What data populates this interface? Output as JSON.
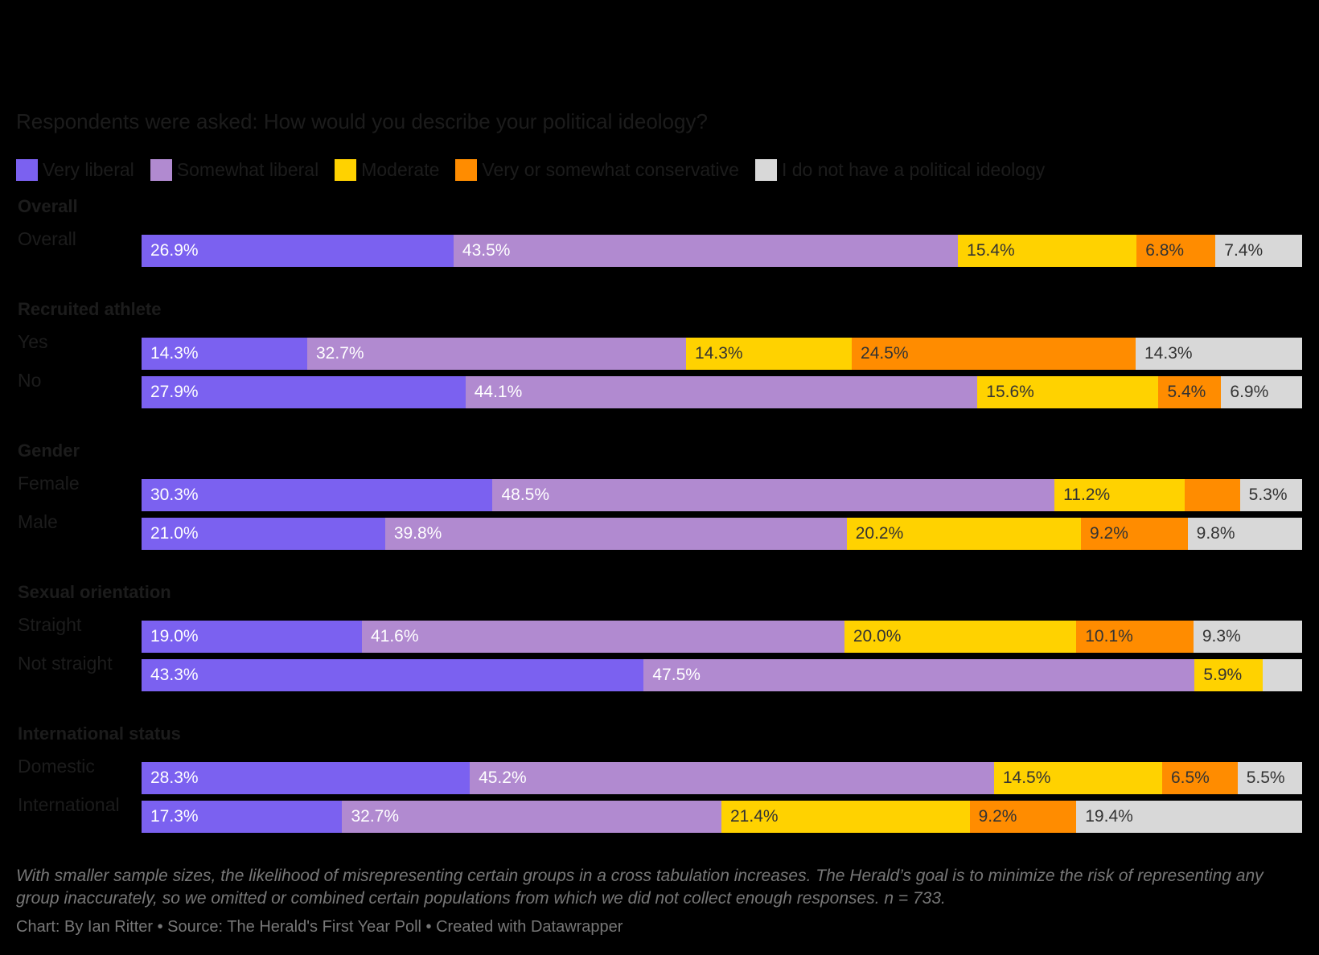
{
  "subtitle": "Respondents were asked: How would you describe your political ideology?",
  "notes": "With smaller sample sizes, the likelihood of misrepresenting certain groups in a cross tabulation increases. The Herald’s goal is to minimize the risk of representing any group inaccurately, so we omitted or combined certain populations from which we did not collect enough responses. n = 733.",
  "byline": "Chart: By Ian Ritter • Source: The Herald's First Year Poll • Created with Datawrapper",
  "colors": {
    "very_liberal": "#7b61f0",
    "somewhat_liberal": "#b18ad0",
    "moderate": "#ffd200",
    "conservative": "#ff8c00",
    "none": "#d8d8d8",
    "label_light": "#ffffff",
    "label_dark": "#333333"
  },
  "chart_data": {
    "type": "bar",
    "stacked": true,
    "orientation": "horizontal",
    "legend_position": "top-left",
    "series": [
      {
        "name": "Very liberal",
        "color": "#7b61f0"
      },
      {
        "name": "Somewhat liberal",
        "color": "#b18ad0"
      },
      {
        "name": "Moderate",
        "color": "#ffd200"
      },
      {
        "name": "Very or somewhat conservative",
        "color": "#ff8c00"
      },
      {
        "name": "I do not have a political ideology",
        "color": "#d8d8d8"
      }
    ],
    "groups": [
      {
        "title": "Overall",
        "rows": [
          {
            "label": "Overall",
            "values": [
              26.9,
              43.5,
              15.4,
              6.8,
              7.4
            ],
            "labels": [
              "26.9%",
              "43.5%",
              "15.4%",
              "6.8%",
              "7.4%"
            ]
          }
        ]
      },
      {
        "title": "Recruited athlete",
        "rows": [
          {
            "label": "Yes",
            "values": [
              14.3,
              32.7,
              14.3,
              24.5,
              14.3
            ],
            "labels": [
              "14.3%",
              "32.7%",
              "14.3%",
              "24.5%",
              "14.3%"
            ]
          },
          {
            "label": "No",
            "values": [
              27.9,
              44.1,
              15.6,
              5.4,
              6.9
            ],
            "labels": [
              "27.9%",
              "44.1%",
              "15.6%",
              "5.4%",
              "6.9%"
            ]
          }
        ]
      },
      {
        "title": "Gender",
        "rows": [
          {
            "label": "Female",
            "values": [
              30.3,
              48.5,
              11.2,
              4.8,
              5.3
            ],
            "labels": [
              "30.3%",
              "48.5%",
              "11.2%",
              "",
              "5.3%"
            ]
          },
          {
            "label": "Male",
            "values": [
              21.0,
              39.8,
              20.2,
              9.2,
              9.8
            ],
            "labels": [
              "21.0%",
              "39.8%",
              "20.2%",
              "9.2%",
              "9.8%"
            ]
          }
        ]
      },
      {
        "title": "Sexual orientation",
        "rows": [
          {
            "label": "Straight",
            "values": [
              19.0,
              41.6,
              20.0,
              10.1,
              9.3
            ],
            "labels": [
              "19.0%",
              "41.6%",
              "20.0%",
              "10.1%",
              "9.3%"
            ]
          },
          {
            "label": "Not straight",
            "values": [
              43.3,
              47.5,
              5.9,
              0,
              3.3
            ],
            "labels": [
              "43.3%",
              "47.5%",
              "5.9%",
              "",
              ""
            ]
          }
        ]
      },
      {
        "title": "International status",
        "rows": [
          {
            "label": "Domestic",
            "values": [
              28.3,
              45.2,
              14.5,
              6.5,
              5.5
            ],
            "labels": [
              "28.3%",
              "45.2%",
              "14.5%",
              "6.5%",
              "5.5%"
            ]
          },
          {
            "label": "International",
            "values": [
              17.3,
              32.7,
              21.4,
              9.2,
              19.4
            ],
            "labels": [
              "17.3%",
              "32.7%",
              "21.4%",
              "9.2%",
              "19.4%"
            ]
          }
        ]
      }
    ]
  }
}
